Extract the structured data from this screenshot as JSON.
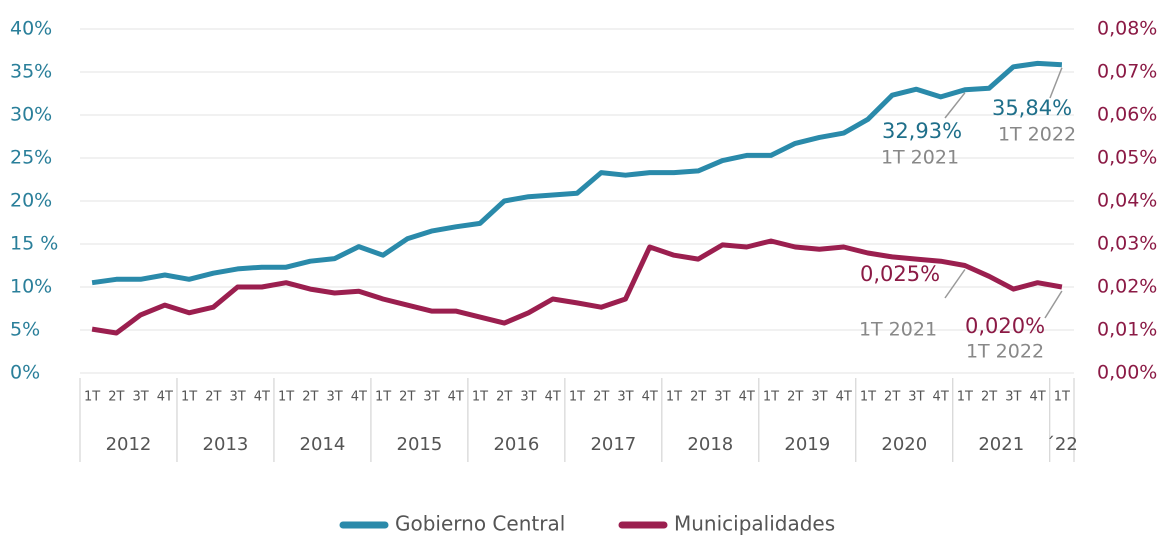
{
  "chart_data": {
    "type": "line",
    "categories": [
      "1T",
      "2T",
      "3T",
      "4T",
      "1T",
      "2T",
      "3T",
      "4T",
      "1T",
      "2T",
      "3T",
      "4T",
      "1T",
      "2T",
      "3T",
      "4T",
      "1T",
      "2T",
      "3T",
      "4T",
      "1T",
      "2T",
      "3T",
      "4T",
      "1T",
      "2T",
      "3T",
      "4T",
      "1T",
      "2T",
      "3T",
      "4T",
      "1T",
      "2T",
      "3T",
      "4T",
      "1T",
      "2T",
      "3T",
      "4T",
      "1T"
    ],
    "category_groups": [
      "2012",
      "2013",
      "2014",
      "2015",
      "2016",
      "2017",
      "2018",
      "2019",
      "2020",
      "2021",
      "´22"
    ],
    "ylim": [
      0,
      40
    ],
    "yticks": [
      {
        "value": 0,
        "label": "0%"
      },
      {
        "value": 5,
        "label": "5%"
      },
      {
        "value": 10,
        "label": "10%"
      },
      {
        "value": 15,
        "label": "15 %"
      },
      {
        "value": 20,
        "label": "20%"
      },
      {
        "value": 25,
        "label": "25%"
      },
      {
        "value": 30,
        "label": "30%"
      },
      {
        "value": 35,
        "label": "35%"
      },
      {
        "value": 40,
        "label": "40%"
      }
    ],
    "y2lim": [
      0,
      0.08
    ],
    "y2ticks": [
      {
        "value": 0,
        "label": "0,00%"
      },
      {
        "value": 0.01,
        "label": "0,01%"
      },
      {
        "value": 0.02,
        "label": "0,02%"
      },
      {
        "value": 0.03,
        "label": "0,03%"
      },
      {
        "value": 0.04,
        "label": "0,04%"
      },
      {
        "value": 0.05,
        "label": "0,05%"
      },
      {
        "value": 0.06,
        "label": "0,06%"
      },
      {
        "value": 0.07,
        "label": "0,07%"
      },
      {
        "value": 0.08,
        "label": "0,08%"
      }
    ],
    "grid": true,
    "legend": "bottom",
    "series": [
      {
        "name": "Gobierno Central",
        "color": "#2a8aaa",
        "values": [
          10.5,
          10.9,
          10.9,
          11.4,
          10.9,
          11.6,
          12.1,
          12.3,
          12.3,
          13.0,
          13.3,
          14.7,
          13.7,
          15.6,
          16.5,
          17.0,
          17.4,
          20.0,
          20.5,
          20.7,
          20.9,
          23.3,
          23.0,
          23.3,
          23.3,
          23.5,
          24.7,
          25.3,
          25.3,
          26.7,
          27.4,
          27.9,
          29.5,
          32.3,
          33.0,
          32.1,
          32.93,
          33.1,
          35.6,
          36.0,
          35.84
        ],
        "value_labels": [
          null,
          null,
          null,
          null,
          null,
          null,
          null,
          null,
          null,
          null,
          null,
          null,
          null,
          null,
          null,
          null,
          null,
          null,
          null,
          null,
          null,
          null,
          null,
          null,
          null,
          null,
          null,
          null,
          null,
          null,
          null,
          null,
          null,
          null,
          null,
          null,
          "32,93%",
          null,
          null,
          null,
          "35,84%"
        ],
        "value_label_periods": [
          null,
          null,
          null,
          null,
          null,
          null,
          null,
          null,
          null,
          null,
          null,
          null,
          null,
          null,
          null,
          null,
          null,
          null,
          null,
          null,
          null,
          null,
          null,
          null,
          null,
          null,
          null,
          null,
          null,
          null,
          null,
          null,
          null,
          null,
          null,
          null,
          "1T 2021",
          null,
          null,
          null,
          "1T 2022"
        ]
      },
      {
        "name": "Municipalidades",
        "color": "#9b1f4f",
        "axis": "y2",
        "values": [
          0.0102,
          0.0093,
          0.0135,
          0.0158,
          0.014,
          0.0153,
          0.02,
          0.02,
          0.021,
          0.0195,
          0.0186,
          0.019,
          0.0172,
          0.0158,
          0.0144,
          0.0144,
          0.013,
          0.0116,
          0.014,
          0.0172,
          0.0163,
          0.0153,
          0.0172,
          0.0293,
          0.0274,
          0.0265,
          0.0298,
          0.0293,
          0.0307,
          0.0293,
          0.0288,
          0.0293,
          0.0279,
          0.027,
          0.0265,
          0.026,
          0.025,
          0.0225,
          0.0195,
          0.021,
          0.02
        ],
        "value_labels": [
          null,
          null,
          null,
          null,
          null,
          null,
          null,
          null,
          null,
          null,
          null,
          null,
          null,
          null,
          null,
          null,
          null,
          null,
          null,
          null,
          null,
          null,
          null,
          null,
          null,
          null,
          null,
          null,
          null,
          null,
          null,
          null,
          null,
          null,
          null,
          null,
          "0,025%",
          null,
          null,
          null,
          "0,020%"
        ],
        "value_label_periods": [
          null,
          null,
          null,
          null,
          null,
          null,
          null,
          null,
          null,
          null,
          null,
          null,
          null,
          null,
          null,
          null,
          null,
          null,
          null,
          null,
          null,
          null,
          null,
          null,
          null,
          null,
          null,
          null,
          null,
          null,
          null,
          null,
          null,
          null,
          null,
          null,
          "1T 2021",
          null,
          null,
          null,
          "1T 2022"
        ]
      }
    ]
  }
}
